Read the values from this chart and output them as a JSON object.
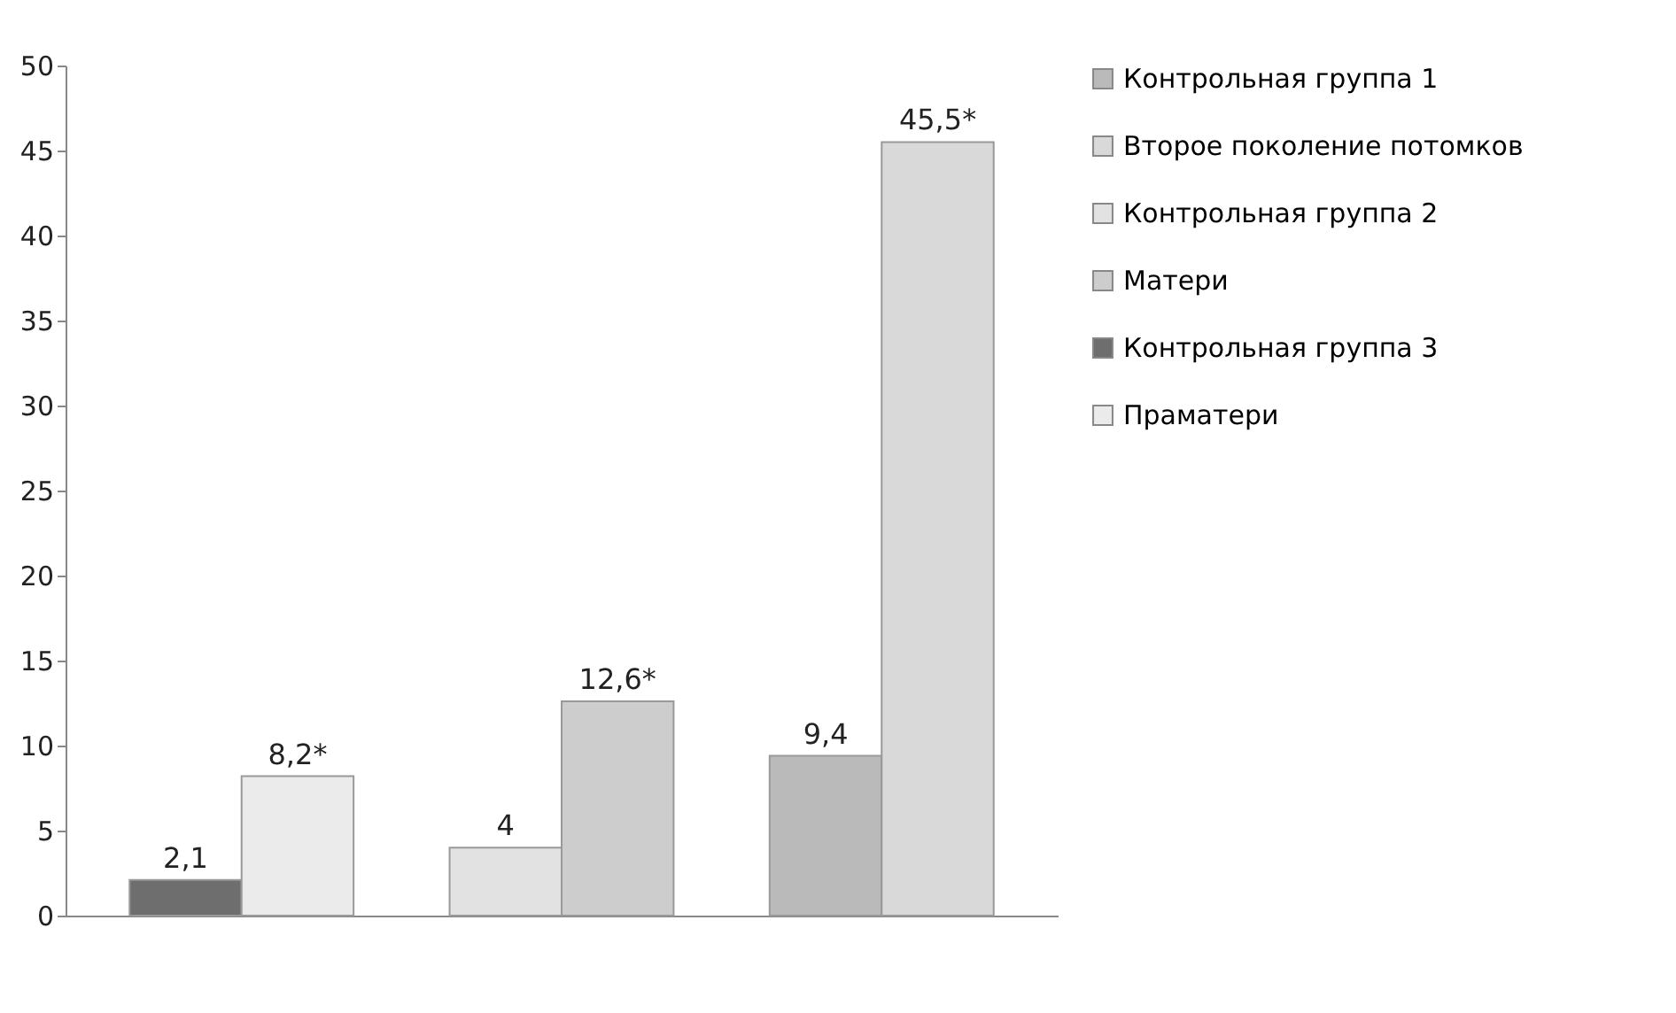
{
  "chart_data": {
    "type": "bar",
    "categories": [
      null,
      null,
      null
    ],
    "series": [
      {
        "name": "Контрольная группа 1",
        "color": "#bababa",
        "values": [
          null,
          null,
          9.4
        ],
        "value_labels": [
          null,
          null,
          "9,4"
        ]
      },
      {
        "name": "Второе поколение потомков",
        "color": "#d9d9d9",
        "values": [
          null,
          null,
          45.5
        ],
        "value_labels": [
          null,
          null,
          "45,5*"
        ]
      },
      {
        "name": "Контрольная группа 2",
        "color": "#e2e2e2",
        "values": [
          null,
          4,
          null
        ],
        "value_labels": [
          null,
          "4",
          null
        ]
      },
      {
        "name": "Матери",
        "color": "#cdcdcd",
        "values": [
          null,
          12.6,
          null
        ],
        "value_labels": [
          null,
          "12,6*",
          null
        ]
      },
      {
        "name": "Контрольная группа 3",
        "color": "#6e6e6e",
        "values": [
          2.1,
          null,
          null
        ],
        "value_labels": [
          "2,1",
          null,
          null
        ]
      },
      {
        "name": "Праматери",
        "color": "#ebebeb",
        "values": [
          8.2,
          null,
          null
        ],
        "value_labels": [
          "8,2*",
          null,
          null
        ]
      }
    ],
    "ylim": [
      0,
      50
    ],
    "yticks": [
      0,
      5,
      10,
      15,
      20,
      25,
      30,
      35,
      40,
      45,
      50
    ],
    "legend": "top right"
  }
}
